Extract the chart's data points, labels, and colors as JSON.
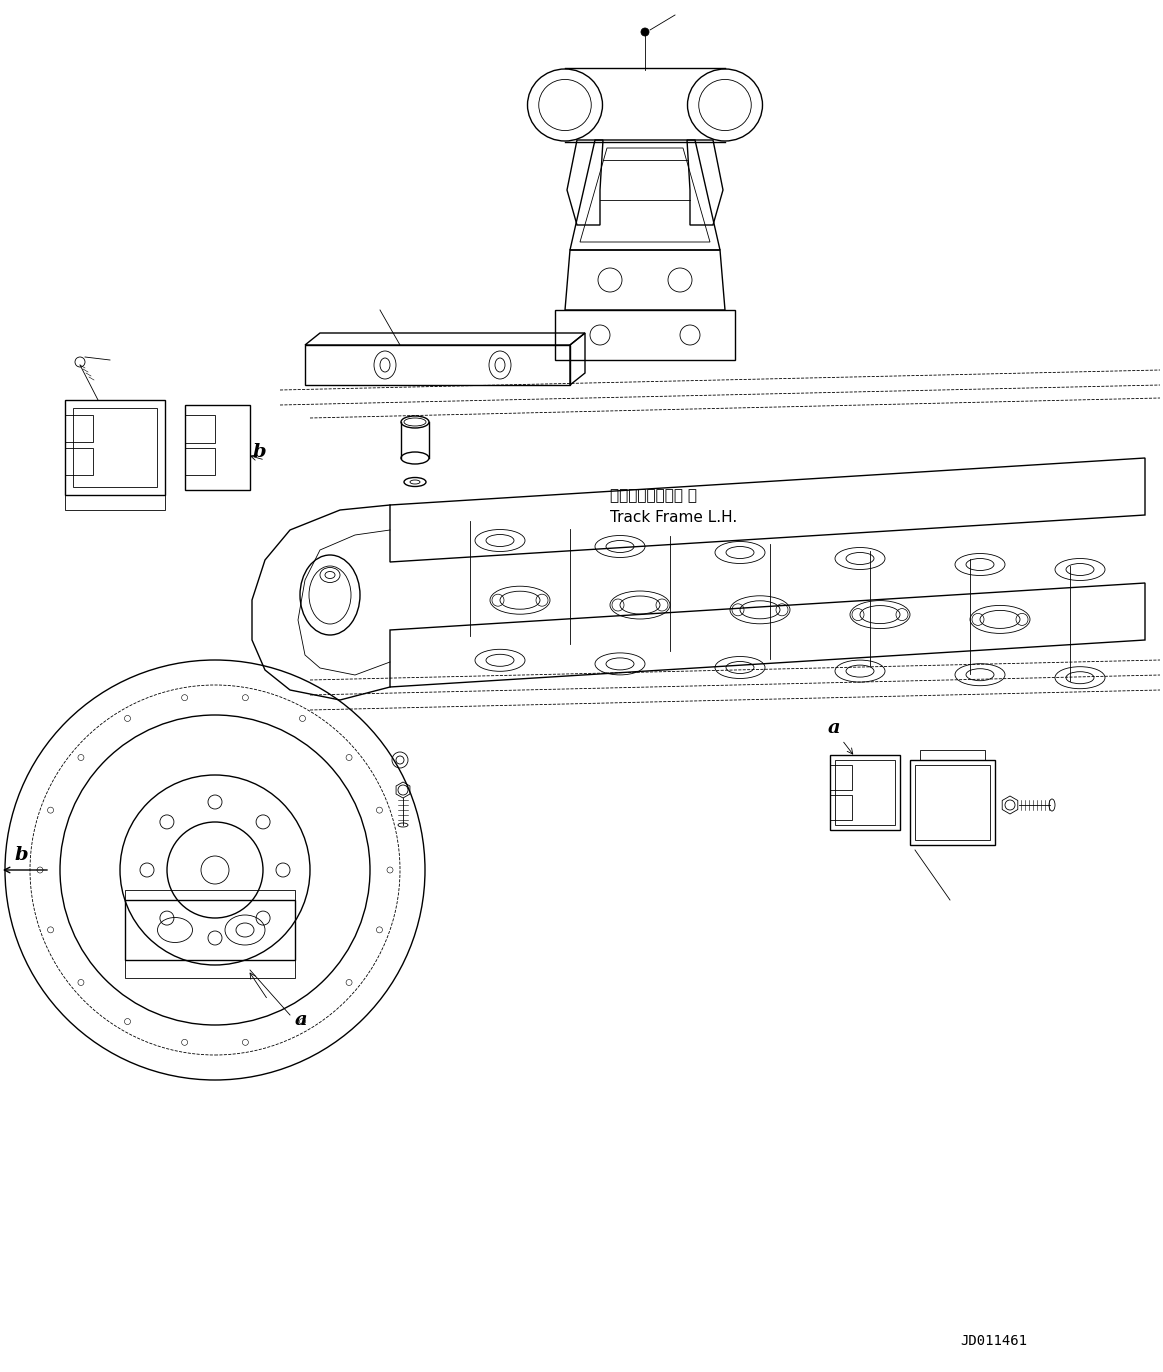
{
  "bg_color": "#ffffff",
  "line_color": "#000000",
  "fig_width": 11.63,
  "fig_height": 13.72,
  "dpi": 100,
  "drawing_id": "JD011461",
  "label_track_frame_ja": "トラックフレーム 左",
  "label_track_frame_en": "Track Frame L.H.",
  "label_a": "a",
  "label_b": "b"
}
